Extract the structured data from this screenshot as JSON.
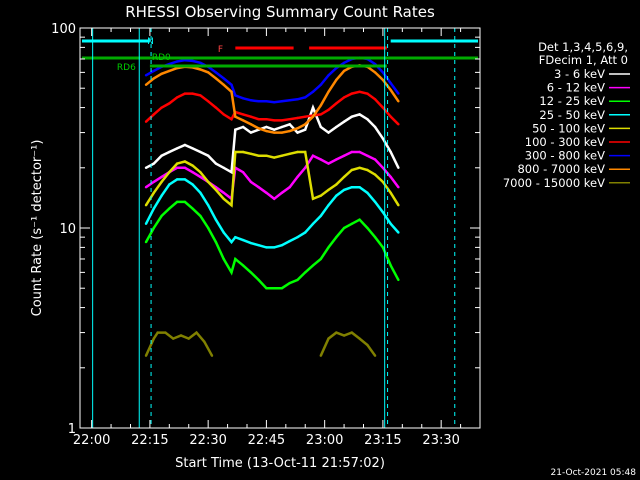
{
  "chart_data": {
    "type": "line",
    "title": "RHESSI Observing Summary Count Rates",
    "xlabel": "Start Time (13-Oct-11 21:57:02)",
    "ylabel": "Count Rate (s⁻¹ detector⁻¹)",
    "yscale": "log",
    "ylim": [
      1,
      100
    ],
    "xlim_minutes": [
      -3,
      100
    ],
    "x_ticks": [
      "22:00",
      "22:15",
      "22:30",
      "22:45",
      "23:00",
      "23:15",
      "23:30"
    ],
    "y_ticks": [
      "1",
      "10",
      "100"
    ],
    "legend_header": [
      "Det 1,3,4,5,6,9,",
      "FDecim 1, Att 0"
    ],
    "footer_date": "21-Oct-2021 05:48",
    "flags": {
      "N_label": "N",
      "F_label": "F",
      "RD0_label": "RD0",
      "RD6_label": "RD6"
    },
    "series": [
      {
        "name": "3 - 6 keV",
        "color": "#ffffff",
        "x": [
          14,
          16,
          18,
          20,
          22,
          24,
          26,
          28,
          30,
          32,
          34,
          36,
          37,
          39,
          41,
          43,
          45,
          47,
          49,
          51,
          53,
          55,
          57,
          59,
          61,
          63,
          65,
          67,
          69,
          71,
          73,
          75,
          77,
          79
        ],
        "values": [
          20,
          21,
          23,
          24,
          25,
          26,
          25,
          24,
          23,
          21,
          20,
          19,
          31,
          32,
          30,
          31,
          32,
          31,
          32,
          33,
          30,
          31,
          40,
          32,
          30,
          32,
          34,
          36,
          37,
          35,
          32,
          28,
          24,
          20
        ]
      },
      {
        "name": "6 - 12 keV",
        "color": "#ff00ff",
        "x": [
          14,
          16,
          18,
          20,
          22,
          24,
          26,
          28,
          30,
          32,
          34,
          36,
          37,
          39,
          41,
          43,
          45,
          47,
          49,
          51,
          53,
          55,
          57,
          59,
          61,
          63,
          65,
          67,
          69,
          71,
          73,
          75,
          77,
          79
        ],
        "values": [
          16,
          17,
          18,
          19,
          20,
          20,
          19,
          18,
          17,
          16,
          15,
          14,
          20,
          19,
          17,
          16,
          15,
          14,
          15,
          16,
          18,
          20,
          23,
          22,
          21,
          22,
          23,
          24,
          24,
          23,
          22,
          20,
          18,
          16
        ]
      },
      {
        "name": "12 - 25 keV",
        "color": "#00ff00",
        "x": [
          14,
          16,
          18,
          20,
          22,
          24,
          26,
          28,
          30,
          32,
          34,
          36,
          37,
          39,
          41,
          43,
          45,
          47,
          49,
          51,
          53,
          55,
          57,
          59,
          61,
          63,
          65,
          67,
          69,
          71,
          73,
          75,
          77,
          79
        ],
        "values": [
          8.5,
          10,
          11.5,
          12.5,
          13.5,
          13.5,
          12.5,
          11.5,
          10,
          8.5,
          7,
          6,
          7,
          6.5,
          6,
          5.5,
          5,
          5,
          5,
          5.3,
          5.5,
          6,
          6.5,
          7,
          8,
          9,
          10,
          10.5,
          11,
          10,
          9,
          8,
          6.5,
          5.5
        ]
      },
      {
        "name": "25 - 50 keV",
        "color": "#00ffff",
        "x": [
          14,
          16,
          18,
          20,
          22,
          24,
          26,
          28,
          30,
          32,
          34,
          36,
          37,
          39,
          41,
          43,
          45,
          47,
          49,
          51,
          53,
          55,
          57,
          59,
          61,
          63,
          65,
          67,
          69,
          71,
          73,
          75,
          77,
          79
        ],
        "values": [
          10.5,
          12.5,
          14.5,
          16.5,
          17.5,
          17.5,
          16.5,
          15,
          13,
          11,
          9.5,
          8.5,
          9,
          8.7,
          8.4,
          8.2,
          8,
          8,
          8.2,
          8.6,
          9,
          9.5,
          10.5,
          11.5,
          13,
          14.5,
          15.5,
          16,
          16,
          15,
          13.5,
          12,
          10.5,
          9.5
        ]
      },
      {
        "name": "50 - 100 keV",
        "color": "#dddd00",
        "x": [
          14,
          16,
          18,
          20,
          22,
          24,
          26,
          28,
          30,
          32,
          34,
          36,
          37,
          39,
          41,
          43,
          45,
          47,
          49,
          51,
          53,
          55,
          57,
          59,
          61,
          63,
          65,
          67,
          69,
          71,
          73,
          75,
          77,
          79
        ],
        "values": [
          13,
          15,
          17,
          19,
          21,
          21.5,
          20.5,
          19,
          17,
          15.5,
          14,
          13,
          24,
          24,
          23.5,
          23,
          23,
          22.5,
          23,
          23.5,
          24,
          24,
          14,
          14.5,
          15.5,
          16.5,
          18,
          19.5,
          20,
          19.5,
          18.5,
          17,
          15,
          13
        ]
      },
      {
        "name": "100 - 300 keV",
        "color": "#ff0000",
        "x": [
          14,
          16,
          18,
          20,
          22,
          24,
          26,
          28,
          30,
          32,
          34,
          36,
          37,
          39,
          41,
          43,
          45,
          47,
          49,
          51,
          53,
          55,
          57,
          59,
          61,
          63,
          65,
          67,
          69,
          71,
          73,
          75,
          77,
          79
        ],
        "values": [
          34,
          37,
          40,
          42,
          45,
          47,
          47,
          46,
          43,
          40,
          37,
          35,
          38,
          37,
          36,
          35,
          35,
          34.5,
          34.5,
          35,
          35.5,
          36,
          36.5,
          37,
          39,
          42,
          45,
          47,
          48,
          47,
          44,
          40,
          36,
          33
        ]
      },
      {
        "name": "300 - 800 keV",
        "color": "#0000ff",
        "x": [
          14,
          16,
          18,
          20,
          22,
          24,
          26,
          28,
          30,
          32,
          34,
          36,
          37,
          39,
          41,
          43,
          45,
          47,
          49,
          51,
          53,
          55,
          57,
          59,
          61,
          63,
          65,
          67,
          69,
          71,
          73,
          75,
          77,
          79
        ],
        "values": [
          58,
          61,
          64,
          66,
          68,
          69,
          68.5,
          67,
          64,
          60,
          56,
          52,
          46,
          44.5,
          43.5,
          43,
          43,
          42.5,
          43,
          43.5,
          44,
          45,
          48,
          52,
          58,
          63,
          67,
          70,
          71,
          70,
          66,
          60,
          53,
          47
        ]
      },
      {
        "name": "800 - 7000 keV",
        "color": "#ff8800",
        "x": [
          14,
          16,
          18,
          20,
          22,
          24,
          26,
          28,
          30,
          32,
          34,
          36,
          37,
          39,
          41,
          43,
          45,
          47,
          49,
          51,
          53,
          55,
          57,
          59,
          61,
          63,
          65,
          67,
          69,
          71,
          73,
          75,
          77,
          79
        ],
        "values": [
          52,
          56,
          59,
          61,
          63,
          64,
          63.5,
          62,
          60,
          56,
          52,
          48,
          36,
          34.5,
          33,
          31.5,
          30.5,
          30,
          30,
          30.5,
          31.5,
          33,
          36,
          41,
          48,
          55,
          61,
          64,
          65,
          64,
          60,
          55,
          49,
          43
        ]
      },
      {
        "name": "7000 - 15000 keV",
        "color": "#808000",
        "x": [
          14,
          16,
          17,
          19,
          21,
          23,
          25,
          27,
          29,
          31,
          59,
          61,
          63,
          65,
          67,
          69,
          71,
          73
        ],
        "values": [
          2.3,
          2.8,
          3.0,
          3.0,
          2.8,
          2.9,
          2.8,
          3.0,
          2.7,
          2.3,
          2.3,
          2.8,
          3.0,
          2.9,
          3.0,
          2.8,
          2.6,
          2.3
        ]
      }
    ]
  }
}
